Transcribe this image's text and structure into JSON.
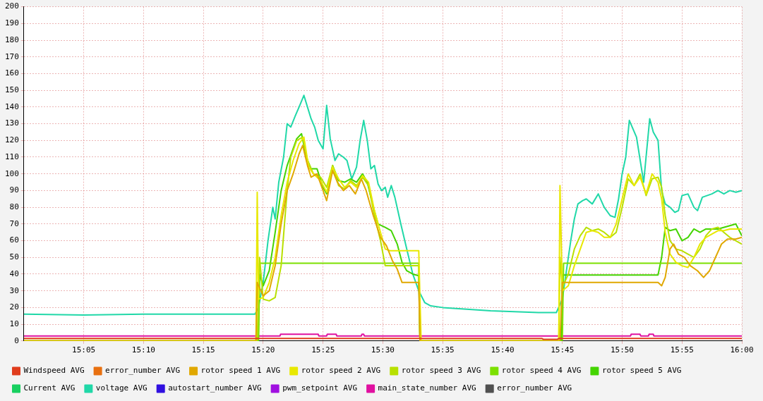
{
  "chart_data": {
    "type": "line",
    "xlim": [
      15,
      16
    ],
    "ylim": [
      0,
      200
    ],
    "xticks": [
      {
        "value": 15.0833,
        "label": "15:05"
      },
      {
        "value": 15.1667,
        "label": "15:10"
      },
      {
        "value": 15.25,
        "label": "15:15"
      },
      {
        "value": 15.3333,
        "label": "15:20"
      },
      {
        "value": 15.4167,
        "label": "15:25"
      },
      {
        "value": 15.5,
        "label": "15:30"
      },
      {
        "value": 15.5833,
        "label": "15:35"
      },
      {
        "value": 15.6667,
        "label": "15:40"
      },
      {
        "value": 15.75,
        "label": "15:45"
      },
      {
        "value": 15.8333,
        "label": "15:50"
      },
      {
        "value": 15.9167,
        "label": "15:55"
      },
      {
        "value": 16,
        "label": "16:00"
      }
    ],
    "yticks": [
      0,
      10,
      20,
      30,
      40,
      50,
      60,
      70,
      80,
      90,
      100,
      110,
      120,
      130,
      140,
      150,
      160,
      170,
      180,
      190,
      200
    ],
    "grid": true,
    "legend": "bottom",
    "marker": "none",
    "line_style": "solid",
    "series": [
      {
        "name": "Windspeed AVG",
        "color": "#e03c1c",
        "x": [
          15,
          15.7217,
          15.7233,
          15.7433,
          15.745,
          16
        ],
        "values": [
          1.5,
          1.5,
          1,
          1,
          1.5,
          1.5
        ]
      },
      {
        "name": "error_number AVG",
        "color": "#e87010"
      },
      {
        "name": "rotor speed 1 AVG",
        "color": "#e0a800",
        "x": [
          15,
          15.3233,
          15.325,
          15.3333,
          15.3417,
          15.35,
          15.3583,
          15.3667,
          15.375,
          15.3833,
          15.3883,
          15.395,
          15.4,
          15.4083,
          15.4167,
          15.4217,
          15.43,
          15.4367,
          15.445,
          15.4533,
          15.4617,
          15.47,
          15.4767,
          15.4867,
          15.4967,
          15.505,
          15.5133,
          15.52,
          15.5267,
          15.5417,
          15.55,
          15.5517,
          15.7467,
          15.75,
          15.8833,
          15.8883,
          15.8933,
          15.9,
          15.905,
          15.9117,
          15.92,
          15.9283,
          15.9383,
          15.9467,
          15.955,
          15.9633,
          15.9717,
          15.98,
          15.9917,
          16
        ],
        "values": [
          0,
          0,
          35,
          27,
          30,
          45,
          70,
          90,
          100,
          112,
          117,
          105,
          98,
          100,
          90,
          84,
          102,
          95,
          90,
          93,
          88,
          97,
          90,
          75,
          62,
          57,
          48,
          43,
          35,
          35,
          35,
          0,
          0,
          35,
          35,
          33,
          38,
          55,
          58,
          52,
          50,
          45,
          42,
          38,
          42,
          50,
          58,
          61,
          61,
          62
        ]
      },
      {
        "name": "rotor speed 2 AVG",
        "color": "#e8e800",
        "x": [
          15,
          15.3233,
          15.325,
          15.3267,
          15.3333,
          15.3417,
          15.35,
          15.3583,
          15.3667,
          15.375,
          15.3833,
          15.39,
          15.3967,
          15.4033,
          15.4133,
          15.4217,
          15.43,
          15.4383,
          15.4467,
          15.455,
          15.4633,
          15.4717,
          15.48,
          15.4883,
          15.4967,
          15.5033,
          15.51,
          15.5467,
          15.55,
          15.5517,
          15.5533,
          15.745,
          15.7467,
          15.75,
          15.7583,
          15.7667,
          15.775,
          15.7833,
          15.7917,
          15.8,
          15.8083,
          15.8167,
          15.825,
          15.8333,
          15.8417,
          15.85,
          15.8583,
          15.8667,
          15.875,
          15.8833,
          15.8883,
          15.8933,
          15.9,
          15.9083,
          15.9167,
          15.925,
          15.9333,
          15.9417,
          15.95,
          15.9583,
          15.9667,
          15.975,
          15.9833,
          16
        ],
        "values": [
          0,
          0,
          89,
          25,
          26,
          35,
          50,
          75,
          95,
          108,
          118,
          122,
          104,
          100,
          96,
          89,
          104,
          97,
          92,
          95,
          92,
          99,
          95,
          78,
          65,
          55,
          54,
          54,
          54,
          25,
          0,
          0,
          93,
          30,
          33,
          45,
          55,
          65,
          66,
          65,
          62,
          62,
          70,
          85,
          100,
          93,
          98,
          88,
          100,
          95,
          85,
          65,
          52,
          47,
          45,
          44,
          50,
          58,
          62,
          64,
          66,
          66,
          67,
          67
        ]
      },
      {
        "name": "rotor speed 3 AVG",
        "color": "#b8e000",
        "x": [
          15,
          15.325,
          15.3283,
          15.3333,
          15.3417,
          15.35,
          15.3583,
          15.3667,
          15.3717,
          15.38,
          15.3883,
          15.395,
          15.4033,
          15.4133,
          15.4217,
          15.43,
          15.4383,
          15.4467,
          15.455,
          15.4633,
          15.4717,
          15.48,
          15.4883,
          15.4967,
          15.5033,
          15.5467,
          15.55,
          15.5517,
          15.745,
          15.7467,
          15.75,
          15.7583,
          15.7667,
          15.775,
          15.7833,
          15.7917,
          15.8,
          15.8083,
          15.8167,
          15.825,
          15.8333,
          15.8417,
          15.85,
          15.8583,
          15.8667,
          15.875,
          15.8833,
          15.8883,
          15.8933,
          15.9,
          15.9083,
          15.9167,
          15.925,
          15.9333,
          15.9417,
          15.95,
          15.9583,
          15.9667,
          15.975,
          15.9833,
          16
        ],
        "values": [
          0,
          0,
          50,
          25,
          24,
          26,
          45,
          90,
          110,
          120,
          122,
          108,
          100,
          98,
          92,
          105,
          93,
          91,
          96,
          93,
          98,
          93,
          75,
          60,
          45,
          45,
          45,
          0,
          0,
          50,
          32,
          40,
          55,
          63,
          68,
          66,
          67,
          65,
          62,
          65,
          80,
          97,
          93,
          100,
          87,
          97,
          98,
          92,
          75,
          60,
          55,
          54,
          52,
          50,
          55,
          63,
          67,
          68,
          65,
          62,
          58
        ]
      },
      {
        "name": "rotor speed 4 AVG",
        "color": "#7ce000",
        "x": [
          15,
          15.3267,
          15.3283,
          15.55,
          15.5517,
          15.75,
          15.7517,
          16
        ],
        "values": [
          0,
          0,
          46.5,
          46.5,
          0,
          0,
          46.5,
          46.5
        ]
      },
      {
        "name": "rotor speed 5 AVG",
        "color": "#44d400",
        "x": [
          15,
          15.3267,
          15.3283,
          15.3333,
          15.3417,
          15.35,
          15.3583,
          15.3667,
          15.3733,
          15.38,
          15.3867,
          15.3933,
          15.4,
          15.4083,
          15.4167,
          15.4217,
          15.43,
          15.4383,
          15.4467,
          15.455,
          15.4633,
          15.4717,
          15.4783,
          15.4867,
          15.4933,
          15.5033,
          15.5117,
          15.52,
          15.5267,
          15.5333,
          15.5417,
          15.55,
          15.5517,
          15.7483,
          15.75,
          15.8833,
          15.8883,
          15.8933,
          15.9,
          15.9083,
          15.9167,
          15.925,
          15.9333,
          15.9417,
          15.95,
          15.9667,
          15.9833,
          15.9917,
          16
        ],
        "values": [
          0,
          0,
          40,
          33,
          42,
          65,
          90,
          105,
          113,
          121,
          124,
          110,
          103,
          103,
          92,
          88,
          105,
          96,
          95,
          97,
          95,
          100,
          95,
          80,
          70,
          68,
          66,
          58,
          47,
          42,
          40,
          39,
          0,
          0,
          39.5,
          39.5,
          50,
          68,
          66,
          67,
          60,
          62,
          67,
          65,
          67,
          67,
          69,
          70,
          63
        ]
      },
      {
        "name": "Current AVG",
        "color": "#18d060"
      },
      {
        "name": "voltage AVG",
        "color": "#20d8a8",
        "x": [
          15,
          15.0833,
          15.1667,
          15.25,
          15.3217,
          15.3267,
          15.3333,
          15.34,
          15.3467,
          15.35,
          15.355,
          15.3617,
          15.3667,
          15.3717,
          15.3783,
          15.3833,
          15.39,
          15.395,
          15.4,
          15.405,
          15.41,
          15.4167,
          15.4217,
          15.4267,
          15.4333,
          15.4383,
          15.445,
          15.45,
          15.4567,
          15.4633,
          15.4683,
          15.4733,
          15.4783,
          15.4833,
          15.4883,
          15.4933,
          15.4983,
          15.5033,
          15.5067,
          15.5117,
          15.5167,
          15.525,
          15.5333,
          15.5417,
          15.55,
          15.5583,
          15.5667,
          15.5833,
          15.6167,
          15.65,
          15.6833,
          15.7167,
          15.7417,
          15.75,
          15.755,
          15.7617,
          15.7667,
          15.7717,
          15.7783,
          15.7833,
          15.7917,
          15.8,
          15.8083,
          15.8167,
          15.8233,
          15.8283,
          15.8333,
          15.8383,
          15.8433,
          15.8533,
          15.8633,
          15.8717,
          15.8767,
          15.8833,
          15.8883,
          15.8933,
          15.9,
          15.9067,
          15.9117,
          15.9167,
          15.925,
          15.9333,
          15.9383,
          15.945,
          15.9583,
          15.9667,
          15.975,
          15.9833,
          15.9917,
          16
        ],
        "values": [
          16,
          15.5,
          16,
          16,
          16,
          20,
          35,
          60,
          80,
          73,
          95,
          110,
          130,
          128,
          135,
          140,
          147,
          140,
          133,
          128,
          120,
          115,
          141,
          121,
          108,
          112,
          110,
          108,
          97,
          104,
          120,
          132,
          120,
          103,
          105,
          94,
          90,
          92,
          86,
          93,
          86,
          70,
          55,
          40,
          30,
          23,
          21,
          20,
          19,
          18,
          17.5,
          17,
          17,
          25,
          40,
          60,
          73,
          82,
          84,
          85,
          82,
          88,
          80,
          75,
          74,
          85,
          100,
          110,
          132,
          122,
          95,
          133,
          125,
          120,
          90,
          82,
          80,
          77,
          78,
          87,
          88,
          80,
          78,
          86,
          88,
          90,
          88,
          90,
          89,
          90
        ]
      },
      {
        "name": "autostart_number AVG",
        "color": "#3010e0"
      },
      {
        "name": "pwm_setpoint AVG",
        "color": "#a010e0"
      },
      {
        "name": "main_state_number AVG",
        "color": "#e010a0",
        "x": [
          15,
          15.3567,
          15.3575,
          15.41,
          15.4108,
          15.4217,
          15.4225,
          15.435,
          15.4358,
          15.47,
          15.4708,
          15.4733,
          15.4742,
          15.845,
          15.8458,
          15.8583,
          15.8592,
          15.87,
          15.8708,
          15.8767,
          15.8775,
          16
        ],
        "values": [
          3,
          3,
          4,
          4,
          3,
          3,
          4,
          4,
          3,
          3,
          4,
          4,
          3,
          3,
          4,
          4,
          3,
          3,
          4,
          4,
          3,
          3
        ]
      },
      {
        "name": "error_number AVG",
        "color": "#505050"
      }
    ]
  }
}
